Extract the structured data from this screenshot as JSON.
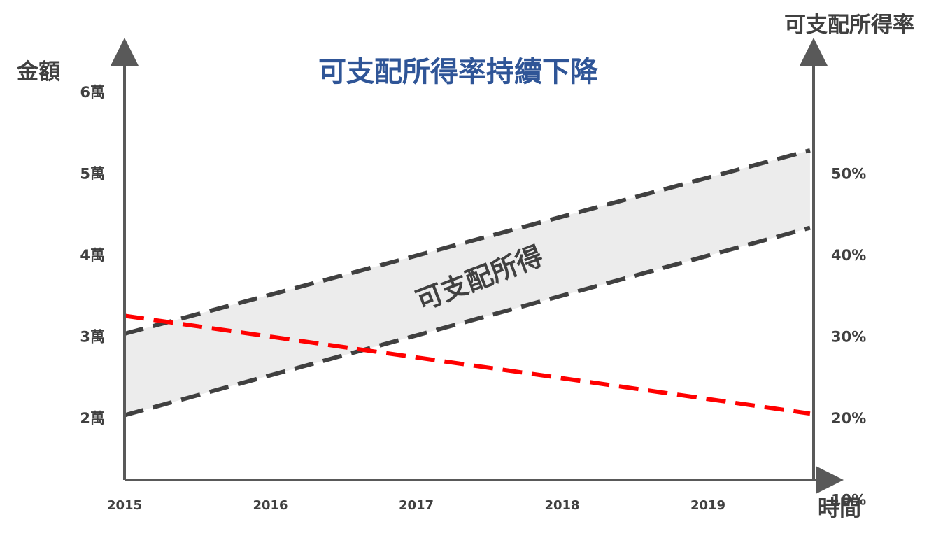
{
  "chart_data": {
    "type": "line",
    "title": "可支配所得率持續下降",
    "ylabel_left": "金額",
    "ylabel_right": "可支配所得率",
    "xlabel": "時間",
    "x_ticks": [
      "2015",
      "2016",
      "2017",
      "2018",
      "2019"
    ],
    "y_left_ticks": [
      "2萬",
      "3萬",
      "4萬",
      "5萬",
      "6萬"
    ],
    "y_right_ticks": [
      "10%",
      "20%",
      "30%",
      "40%",
      "50%"
    ],
    "y_left_range": [
      1.2,
      6.5
    ],
    "y_right_range": [
      2,
      55
    ],
    "band_label": "可支配所得",
    "series": [
      {
        "axis": "left",
        "style": "dashed",
        "color": "#404040",
        "points": [
          {
            "x": 2015,
            "y": 3.03
          },
          {
            "x": 2019.7,
            "y": 5.28
          }
        ]
      },
      {
        "axis": "left",
        "style": "dashed",
        "color": "#404040",
        "points": [
          {
            "x": 2015,
            "y": 2.03
          },
          {
            "x": 2019.7,
            "y": 4.33
          }
        ]
      },
      {
        "axis": "right",
        "style": "dashed",
        "color": "#ff0000",
        "points": [
          {
            "x": 2015,
            "y": 32.5
          },
          {
            "x": 2019.7,
            "y": 20.5
          }
        ]
      }
    ],
    "colors": {
      "title": "#2f5597",
      "axis": "#595959",
      "band_fill": "#ececec",
      "text": "#404040"
    },
    "grid": false
  }
}
